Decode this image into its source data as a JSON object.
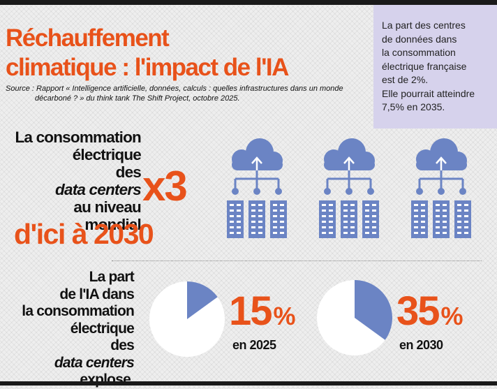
{
  "title": {
    "line1": "Réchauffement",
    "line2": "climatique : l'impact de l'IA"
  },
  "source": {
    "line1": "Source : Rapport « Intelligence artificielle, données, calculs : quelles infrastructures dans un monde",
    "line2": "décarboné ? » du think tank The Shift Project, octobre 2025."
  },
  "note": {
    "lines": [
      "La part des centres",
      "de données dans",
      "la consommation",
      "électrique française",
      "est de 2%.",
      "Elle pourrait atteindre",
      "7,5% en 2035."
    ]
  },
  "consumption": {
    "lines": [
      "La consommation",
      "électrique",
      "des data centers",
      "au niveau",
      "mondial"
    ],
    "multiplier": "x3",
    "horizon": "d'ici à 2030"
  },
  "ai_share": {
    "lines": [
      "La part",
      "de l'IA dans",
      "la consommation",
      "électrique",
      "des data centers",
      "explose."
    ],
    "items": [
      {
        "value": 15,
        "value_text": "15",
        "unit": "%",
        "year": "en 2025"
      },
      {
        "value": 35,
        "value_text": "35",
        "unit": "%",
        "year": "en 2030"
      }
    ]
  },
  "icons": [
    "cloud-server-icon",
    "cloud-server-icon",
    "cloud-server-icon"
  ],
  "colors": {
    "accent": "#e8521a",
    "icon_blue": "#6b84c4",
    "note_bg": "#d6d2ec",
    "pie_bg": "#ffffff"
  }
}
